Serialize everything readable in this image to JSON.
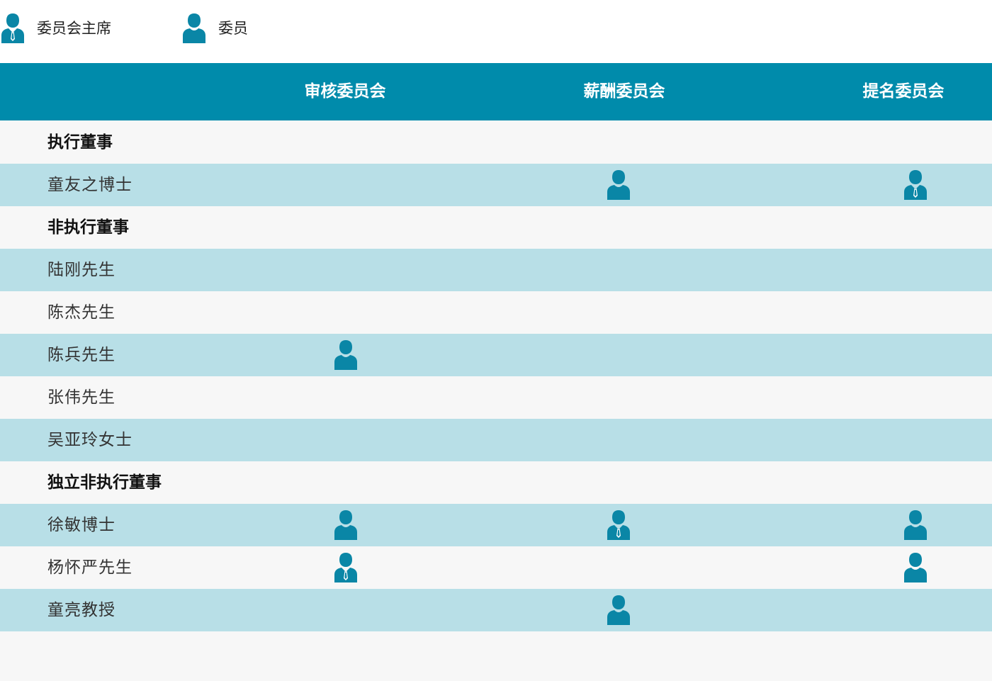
{
  "legend": {
    "chair_label": "委员会主席",
    "member_label": "委员",
    "chair_icon": "committee-chair-icon",
    "member_icon": "committee-member-icon"
  },
  "colors": {
    "header_bg": "#008bab",
    "icon": "#0a86a6",
    "row_blue": "#b8dfe7",
    "row_light": "#f7f7f7"
  },
  "committees": [
    "审核委员会",
    "薪酬委员会",
    "提名委员会"
  ],
  "rows": [
    {
      "type": "section",
      "label": "执行董事",
      "roles": [
        "",
        "",
        ""
      ]
    },
    {
      "type": "person",
      "label": "童友之博士",
      "roles": [
        "",
        "member",
        "chair"
      ]
    },
    {
      "type": "section",
      "label": "非执行董事",
      "roles": [
        "",
        "",
        ""
      ]
    },
    {
      "type": "person",
      "label": "陆刚先生",
      "roles": [
        "",
        "",
        ""
      ]
    },
    {
      "type": "person",
      "label": "陈杰先生",
      "roles": [
        "",
        "",
        ""
      ]
    },
    {
      "type": "person",
      "label": "陈兵先生",
      "roles": [
        "member",
        "",
        ""
      ]
    },
    {
      "type": "person",
      "label": "张伟先生",
      "roles": [
        "",
        "",
        ""
      ]
    },
    {
      "type": "person",
      "label": "吴亚玲女士",
      "roles": [
        "",
        "",
        ""
      ]
    },
    {
      "type": "section",
      "label": "独立非执行董事",
      "roles": [
        "",
        "",
        ""
      ]
    },
    {
      "type": "person",
      "label": "徐敏博士",
      "roles": [
        "member",
        "chair",
        "member"
      ]
    },
    {
      "type": "person",
      "label": "杨怀严先生",
      "roles": [
        "chair",
        "",
        "member"
      ]
    },
    {
      "type": "person",
      "label": "童亮教授",
      "roles": [
        "",
        "member",
        ""
      ]
    }
  ]
}
